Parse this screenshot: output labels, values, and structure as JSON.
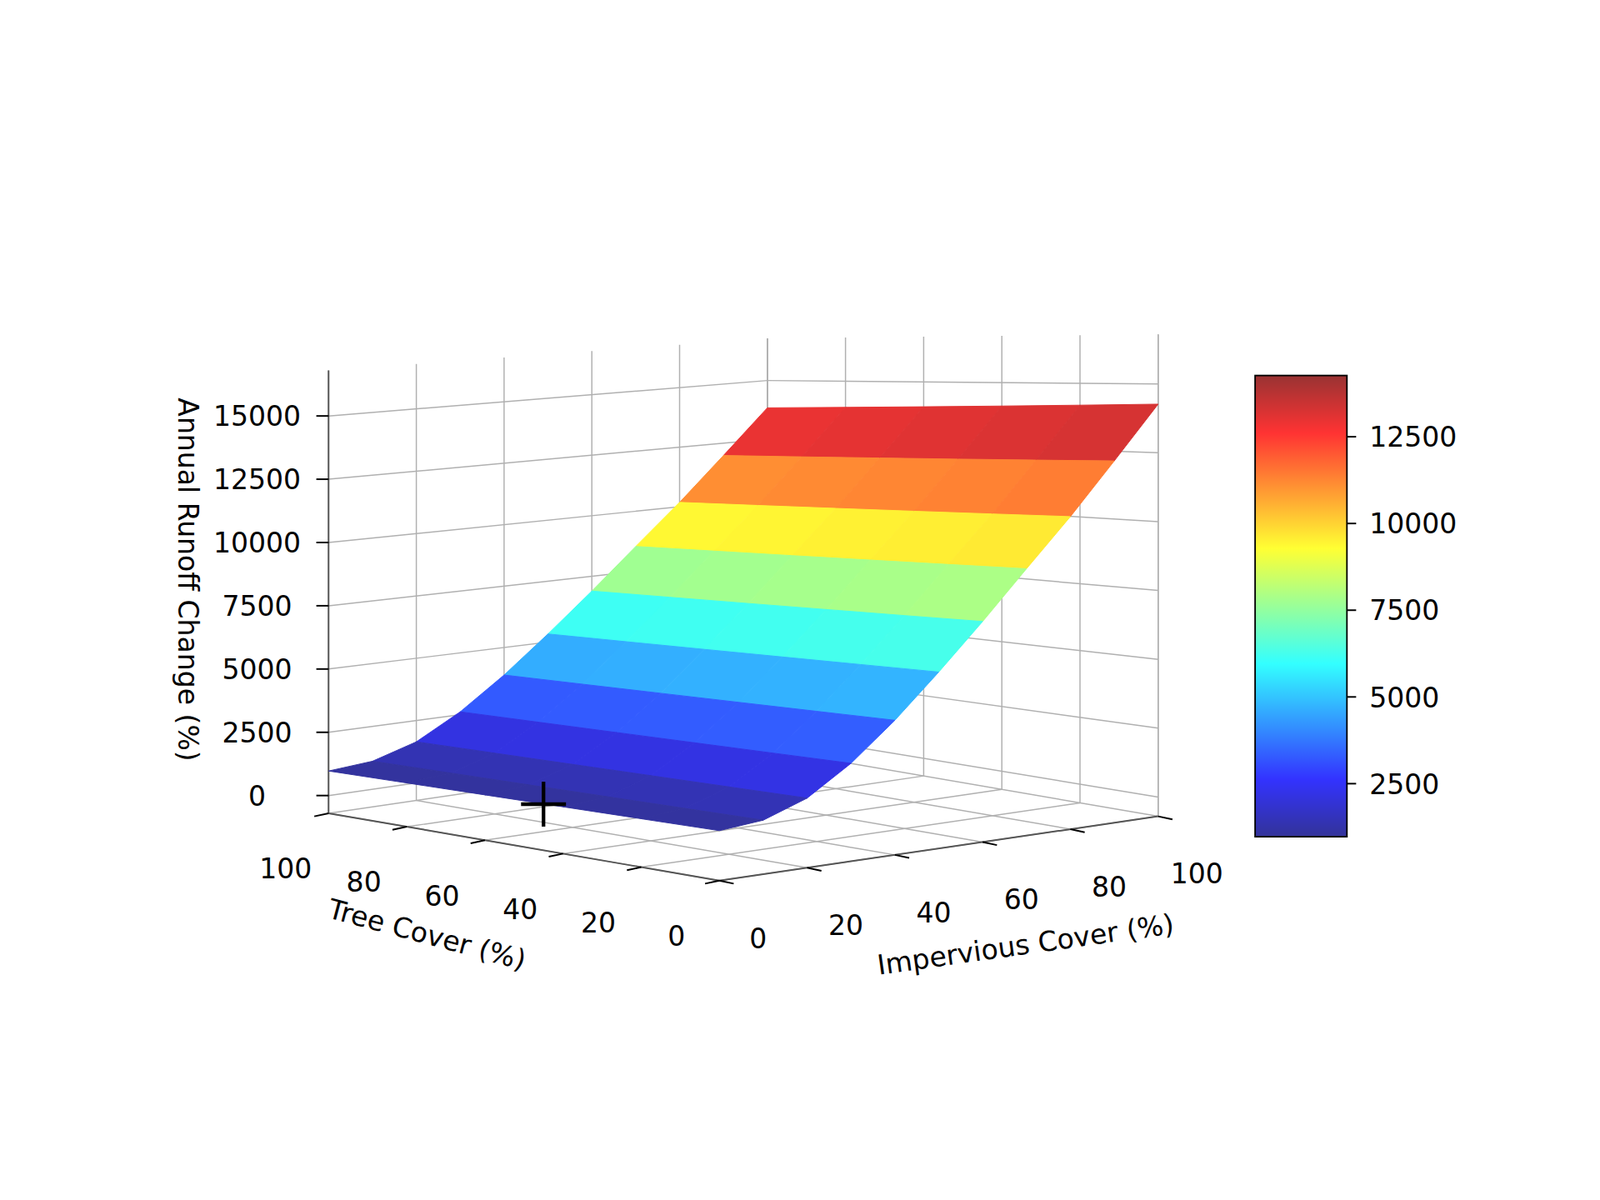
{
  "chart_data": {
    "type": "surface3d",
    "x_label": "Impervious Cover (%)",
    "y_label": "Tree Cover (%)",
    "z_label": "Annual Runoff Change (%)",
    "x": [
      0,
      10,
      20,
      30,
      40,
      50,
      60,
      70,
      80,
      90,
      100
    ],
    "y": [
      0,
      20,
      40,
      60,
      80,
      100
    ],
    "z": [
      [
        1000,
        1150,
        1700,
        2700,
        4000,
        5500,
        7100,
        8800,
        10500,
        12350,
        14265
      ],
      [
        994,
        1143,
        1690,
        2684,
        3976,
        5467,
        7057,
        8747,
        10437,
        12276,
        14179
      ],
      [
        988,
        1136,
        1680,
        2668,
        3952,
        5434,
        7015,
        8694,
        10374,
        12202,
        14094
      ],
      [
        982,
        1129,
        1669,
        2651,
        3928,
        5401,
        6972,
        8642,
        10311,
        12128,
        14008
      ],
      [
        976,
        1122,
        1659,
        2635,
        3904,
        5368,
        6930,
        8589,
        10248,
        12054,
        13923
      ],
      [
        970,
        1116,
        1649,
        2619,
        3880,
        5335,
        6887,
        8536,
        10185,
        11980,
        13837
      ]
    ],
    "xlim": [
      0,
      100
    ],
    "ylim": [
      0,
      100
    ],
    "zlim": [
      -700,
      16800
    ],
    "xticks": [
      0,
      20,
      40,
      60,
      80,
      100
    ],
    "yticks": [
      0,
      20,
      40,
      60,
      80,
      100
    ],
    "zticks": [
      0,
      2500,
      5000,
      7500,
      10000,
      12500,
      15000
    ],
    "grid": true,
    "colorbar": {
      "range": [
        970,
        14265
      ],
      "ticks": [
        2500,
        5000,
        7500,
        10000,
        12500
      ]
    },
    "points": {
      "x": [
        0
      ],
      "y": [
        45
      ],
      "z": [
        975
      ],
      "marker": "plus"
    }
  }
}
